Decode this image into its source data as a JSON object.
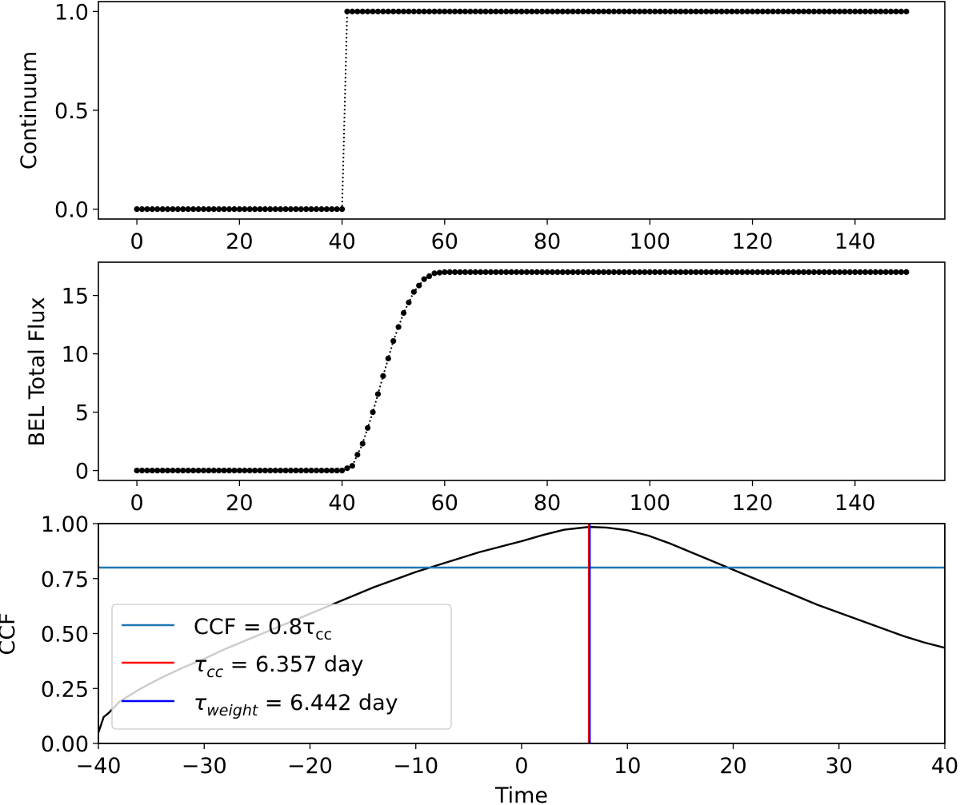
{
  "chart_data": [
    {
      "type": "scatter",
      "panel": "top",
      "title": "",
      "xlabel": "",
      "ylabel": "Continuum",
      "xlim": [
        -7.5,
        157.5
      ],
      "ylim": [
        -0.05,
        1.05
      ],
      "xticks": [
        0,
        20,
        40,
        60,
        80,
        100,
        120,
        140
      ],
      "xtick_labels": [
        "0",
        "20",
        "40",
        "60",
        "80",
        "100",
        "120",
        "140"
      ],
      "yticks": [
        0.0,
        0.5,
        1.0
      ],
      "ytick_labels": [
        "0.0",
        "0.5",
        "1.0"
      ],
      "grid": false,
      "marker": "dot, dotted connecting line",
      "description": "Step function: 0 for t in [0,40], 1 for t in (40,150], sampled every 1 day",
      "x_step": 1,
      "x_range": [
        0,
        150
      ],
      "step_at": 40,
      "low_value": 0.0,
      "high_value": 1.0
    },
    {
      "type": "scatter",
      "panel": "middle",
      "title": "",
      "xlabel": "",
      "ylabel": "BEL Total Flux",
      "xlim": [
        -7.5,
        157.5
      ],
      "ylim": [
        -0.85,
        17.85
      ],
      "xticks": [
        0,
        20,
        40,
        60,
        80,
        100,
        120,
        140
      ],
      "xtick_labels": [
        "0",
        "20",
        "40",
        "60",
        "80",
        "100",
        "120",
        "140"
      ],
      "yticks": [
        0,
        5,
        10,
        15
      ],
      "ytick_labels": [
        "0",
        "5",
        "10",
        "15"
      ],
      "grid": false,
      "marker": "dot, dotted connecting line",
      "description": "0 until t≈41, sigmoid rise between t≈41 and t≈60, plateau ≈17.0 to t=150",
      "x_step": 1,
      "x_range": [
        0,
        150
      ],
      "rise_start": 41,
      "rise_end": 61,
      "plateau_value": 17.0,
      "key_points": [
        {
          "x": 40,
          "y": 0.0
        },
        {
          "x": 42,
          "y": 0.4
        },
        {
          "x": 44,
          "y": 2.3
        },
        {
          "x": 46,
          "y": 5.0
        },
        {
          "x": 48,
          "y": 8.1
        },
        {
          "x": 50,
          "y": 11.1
        },
        {
          "x": 52,
          "y": 13.5
        },
        {
          "x": 54,
          "y": 15.3
        },
        {
          "x": 56,
          "y": 16.4
        },
        {
          "x": 58,
          "y": 16.9
        },
        {
          "x": 60,
          "y": 17.0
        },
        {
          "x": 150,
          "y": 17.0
        }
      ]
    },
    {
      "type": "line",
      "panel": "bottom",
      "title": "",
      "xlabel": "Time",
      "ylabel": "CCF",
      "xlim": [
        -40,
        40
      ],
      "ylim": [
        0.0,
        1.0
      ],
      "xticks": [
        -40,
        -30,
        -20,
        -10,
        0,
        10,
        20,
        30,
        40
      ],
      "xtick_labels": [
        "−40",
        "−30",
        "−20",
        "−10",
        "0",
        "10",
        "20",
        "30",
        "40"
      ],
      "yticks": [
        0.0,
        0.25,
        0.5,
        0.75,
        1.0
      ],
      "ytick_labels": [
        "0.00",
        "0.25",
        "0.50",
        "0.75",
        "1.00"
      ],
      "grid": false,
      "legend_position": "lower left",
      "series": [
        {
          "name": "CCF",
          "color": "#000000",
          "x": [
            -40,
            -39.5,
            -39,
            -38,
            -36,
            -34,
            -32,
            -30,
            -28,
            -26,
            -24,
            -22,
            -20,
            -18,
            -16,
            -14,
            -12,
            -10,
            -8,
            -6,
            -4,
            -2,
            0,
            2,
            4,
            6.36,
            8,
            10,
            12,
            14,
            16,
            18,
            20,
            22,
            24,
            26,
            28,
            30,
            32,
            34,
            36,
            38,
            40
          ],
          "y": [
            0.05,
            0.12,
            0.14,
            0.19,
            0.25,
            0.3,
            0.345,
            0.385,
            0.43,
            0.47,
            0.51,
            0.55,
            0.59,
            0.63,
            0.67,
            0.71,
            0.745,
            0.78,
            0.81,
            0.84,
            0.87,
            0.895,
            0.92,
            0.948,
            0.972,
            0.985,
            0.982,
            0.97,
            0.945,
            0.91,
            0.87,
            0.83,
            0.79,
            0.75,
            0.71,
            0.67,
            0.63,
            0.595,
            0.56,
            0.525,
            0.49,
            0.46,
            0.435
          ]
        },
        {
          "name": "CCF = 0.8τcc",
          "color": "#1f77b4",
          "type": "hline",
          "y": 0.8
        },
        {
          "name": "τcc = 6.357 day",
          "color": "#ff0000",
          "type": "vline",
          "x": 6.357
        },
        {
          "name": "τweight = 6.442 day",
          "color": "#0000ff",
          "type": "vline",
          "x": 6.442
        }
      ],
      "legend": [
        {
          "label_main": "CCF = 0.8τ",
          "label_sub": "cc",
          "label_tail": "",
          "color": "#1f77b4"
        },
        {
          "label_main": "τ",
          "label_sub": "cc",
          "label_tail": " =  6.357 day",
          "color": "#ff0000"
        },
        {
          "label_main": "τ",
          "label_sub": "weight",
          "label_tail": " =  6.442 day",
          "color": "#0000ff"
        }
      ]
    }
  ]
}
